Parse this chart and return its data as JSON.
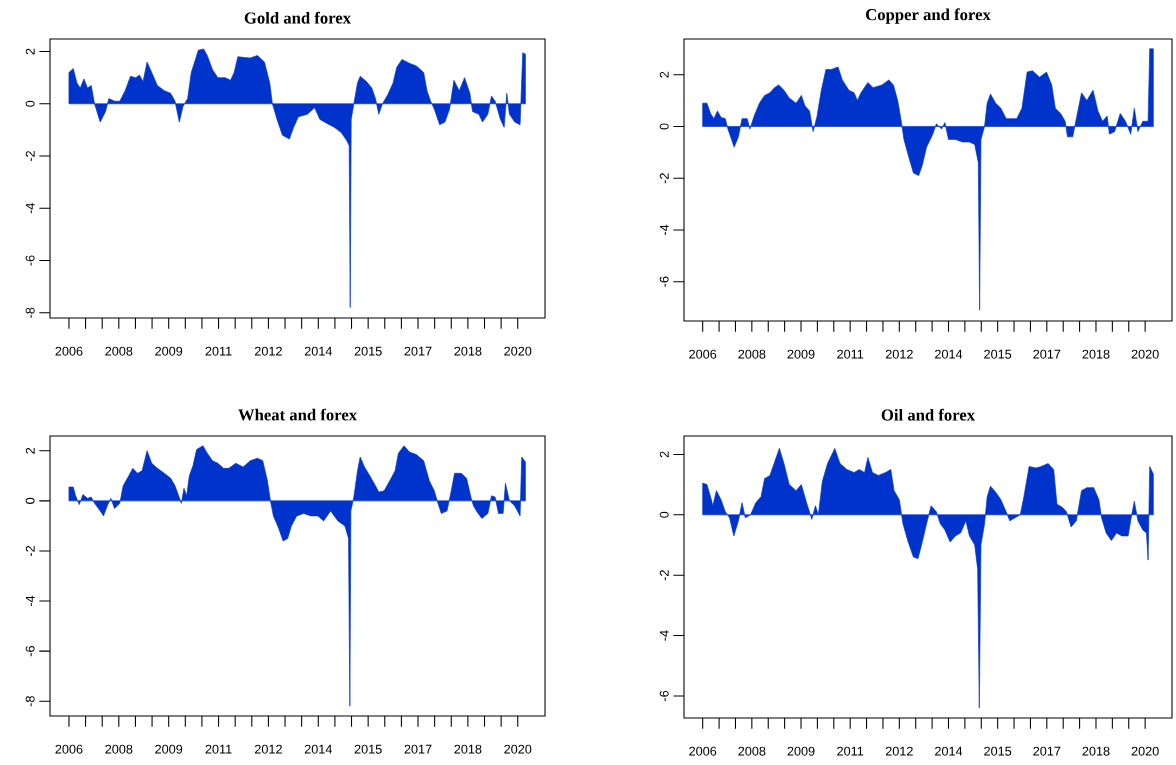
{
  "chart_data": [
    {
      "type": "area",
      "title": "Gold and forex",
      "color": "#0033cc",
      "x": [
        2006.0,
        2006.13,
        2006.24,
        2006.34,
        2006.45,
        2006.56,
        2006.67,
        2006.77,
        2006.94,
        2007.1,
        2007.2,
        2007.37,
        2007.53,
        2007.69,
        2007.85,
        2008.01,
        2008.12,
        2008.23,
        2008.35,
        2008.49,
        2008.66,
        2008.87,
        2009.06,
        2009.19,
        2009.32,
        2009.43,
        2009.57,
        2009.68,
        2009.78,
        2009.89,
        2010.05,
        2010.16,
        2010.32,
        2010.48,
        2010.7,
        2010.86,
        2010.97,
        2011.08,
        2011.45,
        2011.67,
        2011.88,
        2012.04,
        2012.12,
        2012.26,
        2012.42,
        2012.63,
        2012.76,
        2012.9,
        2013.17,
        2013.39,
        2013.55,
        2013.76,
        2013.98,
        2014.19,
        2014.35,
        2014.43,
        2014.46,
        2014.49,
        2014.57,
        2014.68,
        2014.76,
        2014.95,
        2015.11,
        2015.22,
        2015.32,
        2015.43,
        2015.59,
        2015.75,
        2015.86,
        2016.02,
        2016.24,
        2016.45,
        2016.67,
        2016.77,
        2016.88,
        2016.99,
        2017.15,
        2017.31,
        2017.45,
        2017.58,
        2017.74,
        2017.9,
        2018.06,
        2018.14,
        2018.33,
        2018.44,
        2018.6,
        2018.71,
        2018.82,
        2018.98,
        2019.09,
        2019.17,
        2019.25,
        2019.41,
        2019.57,
        2019.65,
        2019.73
      ],
      "values": [
        1.2,
        1.35,
        0.8,
        0.6,
        0.95,
        0.6,
        0.7,
        0.0,
        -0.7,
        -0.3,
        0.2,
        0.1,
        0.1,
        0.5,
        1.05,
        1.0,
        1.1,
        0.85,
        1.6,
        1.2,
        0.7,
        0.5,
        0.4,
        0.1,
        -0.7,
        -0.1,
        0.2,
        1.2,
        1.6,
        2.05,
        2.1,
        1.85,
        1.3,
        1.0,
        1.0,
        0.9,
        1.2,
        1.8,
        1.75,
        1.85,
        1.6,
        0.8,
        0.0,
        -0.6,
        -1.2,
        -1.35,
        -0.9,
        -0.5,
        -0.4,
        -0.15,
        -0.6,
        -0.75,
        -0.9,
        -1.1,
        -1.4,
        -1.6,
        -7.8,
        -0.6,
        0.0,
        0.8,
        1.05,
        0.85,
        0.6,
        0.2,
        -0.4,
        0.0,
        0.35,
        0.8,
        1.4,
        1.7,
        1.55,
        1.45,
        1.2,
        0.5,
        0.1,
        -0.2,
        -0.8,
        -0.7,
        -0.2,
        0.9,
        0.5,
        1.0,
        0.4,
        -0.3,
        -0.4,
        -0.7,
        -0.4,
        0.3,
        0.1,
        -0.6,
        -0.9,
        0.4,
        -0.4,
        -0.7,
        -0.8,
        1.95,
        1.9
      ],
      "xlim": [
        2005.43,
        2020.32
      ],
      "ylim": [
        -8.2,
        2.48
      ],
      "yticks": [
        -8,
        -6,
        -4,
        -2,
        0,
        2
      ],
      "xticks": [
        2006,
        {
          "value": 2006.5,
          "label": null
        },
        {
          "value": 2007,
          "label": null
        },
        {
          "value": 2007.5,
          "label": "2008"
        },
        {
          "value": 2008,
          "label": null
        },
        {
          "value": 2008.5,
          "label": null
        },
        2009,
        {
          "value": 2009.5,
          "label": null
        },
        {
          "value": 2010,
          "label": null
        },
        {
          "value": 2010.5,
          "label": "2011"
        },
        {
          "value": 2011,
          "label": null
        },
        {
          "value": 2011.5,
          "label": null
        },
        2012,
        {
          "value": 2012.5,
          "label": null
        },
        {
          "value": 2013,
          "label": null
        },
        {
          "value": 2013.5,
          "label": "2014"
        },
        {
          "value": 2014,
          "label": null
        },
        {
          "value": 2014.5,
          "label": null
        },
        2015,
        {
          "value": 2015.5,
          "label": null
        },
        {
          "value": 2016,
          "label": null
        },
        {
          "value": 2016.5,
          "label": "2017"
        },
        {
          "value": 2017,
          "label": null
        },
        {
          "value": 2017.5,
          "label": null
        },
        2018,
        {
          "value": 2018.5,
          "label": null
        },
        {
          "value": 2019,
          "label": null
        },
        {
          "value": 2019.5,
          "label": "2020"
        }
      ]
    },
    {
      "type": "area",
      "title": "Copper and forex",
      "color": "#0033cc",
      "x": [
        2006.0,
        2006.13,
        2006.24,
        2006.34,
        2006.45,
        2006.56,
        2006.69,
        2006.77,
        2006.88,
        2006.96,
        2007.09,
        2007.2,
        2007.36,
        2007.44,
        2007.57,
        2007.73,
        2007.89,
        2008.05,
        2008.19,
        2008.32,
        2008.48,
        2008.64,
        2008.85,
        2009.01,
        2009.12,
        2009.26,
        2009.37,
        2009.49,
        2009.62,
        2009.76,
        2009.92,
        2010.13,
        2010.26,
        2010.46,
        2010.62,
        2010.72,
        2010.83,
        2011.04,
        2011.2,
        2011.47,
        2011.68,
        2011.82,
        2011.95,
        2012.06,
        2012.14,
        2012.27,
        2012.43,
        2012.59,
        2012.7,
        2012.83,
        2013.02,
        2013.13,
        2013.29,
        2013.39,
        2013.5,
        2013.71,
        2013.93,
        2014.14,
        2014.3,
        2014.41,
        2014.45,
        2014.49,
        2014.6,
        2014.68,
        2014.78,
        2014.94,
        2015.1,
        2015.26,
        2015.37,
        2015.58,
        2015.74,
        2015.9,
        2016.06,
        2016.28,
        2016.49,
        2016.65,
        2016.76,
        2016.92,
        2017.06,
        2017.13,
        2017.29,
        2017.4,
        2017.56,
        2017.72,
        2017.91,
        2018.06,
        2018.2,
        2018.34,
        2018.41,
        2018.57,
        2018.74,
        2018.9,
        2019.06,
        2019.17,
        2019.28,
        2019.43,
        2019.59,
        2019.64,
        2019.75
      ],
      "values": [
        0.9,
        0.9,
        0.5,
        0.3,
        0.6,
        0.35,
        0.3,
        -0.1,
        -0.5,
        -0.8,
        -0.4,
        0.3,
        0.3,
        -0.1,
        0.4,
        0.9,
        1.2,
        1.3,
        1.5,
        1.6,
        1.4,
        1.1,
        0.9,
        1.2,
        0.8,
        0.6,
        -0.2,
        0.4,
        1.4,
        2.2,
        2.2,
        2.3,
        1.8,
        1.4,
        1.3,
        1.0,
        1.3,
        1.7,
        1.5,
        1.6,
        1.8,
        1.6,
        1.0,
        0.2,
        -0.5,
        -1.1,
        -1.8,
        -1.9,
        -1.5,
        -0.8,
        -0.3,
        0.1,
        -0.1,
        0.15,
        -0.5,
        -0.5,
        -0.6,
        -0.6,
        -0.7,
        -1.4,
        -7.1,
        -0.5,
        0.0,
        0.9,
        1.25,
        0.9,
        0.7,
        0.3,
        0.3,
        0.3,
        0.7,
        2.1,
        2.15,
        1.9,
        2.1,
        1.6,
        0.7,
        0.5,
        0.2,
        -0.4,
        -0.4,
        0.3,
        1.3,
        1.0,
        1.4,
        0.6,
        0.2,
        0.4,
        -0.3,
        -0.2,
        0.5,
        0.2,
        -0.3,
        0.7,
        -0.2,
        0.2,
        0.2,
        3.0,
        3.0
      ],
      "xlim": [
        2005.43,
        2020.32
      ],
      "ylim": [
        -7.52,
        3.38
      ],
      "yticks": [
        -6,
        -4,
        -2,
        0,
        2
      ],
      "xticks": [
        2006,
        {
          "value": 2006.5,
          "label": null
        },
        {
          "value": 2007,
          "label": null
        },
        {
          "value": 2007.5,
          "label": "2008"
        },
        {
          "value": 2008,
          "label": null
        },
        {
          "value": 2008.5,
          "label": null
        },
        2009,
        {
          "value": 2009.5,
          "label": null
        },
        {
          "value": 2010,
          "label": null
        },
        {
          "value": 2010.5,
          "label": "2011"
        },
        {
          "value": 2011,
          "label": null
        },
        {
          "value": 2011.5,
          "label": null
        },
        2012,
        {
          "value": 2012.5,
          "label": null
        },
        {
          "value": 2013,
          "label": null
        },
        {
          "value": 2013.5,
          "label": "2014"
        },
        {
          "value": 2014,
          "label": null
        },
        {
          "value": 2014.5,
          "label": null
        },
        2015,
        {
          "value": 2015.5,
          "label": null
        },
        {
          "value": 2016,
          "label": null
        },
        {
          "value": 2016.5,
          "label": "2017"
        },
        {
          "value": 2017,
          "label": null
        },
        {
          "value": 2017.5,
          "label": null
        },
        2018,
        {
          "value": 2018.5,
          "label": null
        },
        {
          "value": 2019,
          "label": null
        },
        {
          "value": 2019.5,
          "label": "2020"
        }
      ]
    },
    {
      "type": "area",
      "title": "Wheat and forex",
      "color": "#0033cc",
      "x": [
        2006.0,
        2006.13,
        2006.2,
        2006.31,
        2006.42,
        2006.56,
        2006.67,
        2006.77,
        2006.94,
        2007.04,
        2007.15,
        2007.26,
        2007.37,
        2007.53,
        2007.63,
        2007.8,
        2007.92,
        2008.06,
        2008.2,
        2008.35,
        2008.49,
        2008.66,
        2008.87,
        2009.06,
        2009.19,
        2009.3,
        2009.38,
        2009.46,
        2009.54,
        2009.62,
        2009.73,
        2009.84,
        2010.03,
        2010.16,
        2010.32,
        2010.48,
        2010.65,
        2010.81,
        2011.02,
        2011.24,
        2011.45,
        2011.67,
        2011.83,
        2011.97,
        2012.06,
        2012.15,
        2012.31,
        2012.44,
        2012.58,
        2012.69,
        2012.85,
        2013.06,
        2013.28,
        2013.49,
        2013.66,
        2013.87,
        2014.09,
        2014.3,
        2014.41,
        2014.45,
        2014.48,
        2014.57,
        2014.68,
        2014.76,
        2014.89,
        2015.05,
        2015.22,
        2015.32,
        2015.48,
        2015.65,
        2015.81,
        2015.91,
        2016.08,
        2016.24,
        2016.45,
        2016.67,
        2016.84,
        2016.99,
        2017.1,
        2017.2,
        2017.37,
        2017.47,
        2017.6,
        2017.8,
        2017.96,
        2018.1,
        2018.17,
        2018.28,
        2018.42,
        2018.6,
        2018.71,
        2018.82,
        2018.92,
        2019.06,
        2019.13,
        2019.25,
        2019.41,
        2019.57,
        2019.62,
        2019.73
      ],
      "values": [
        0.55,
        0.55,
        0.2,
        -0.15,
        0.25,
        0.1,
        0.15,
        -0.1,
        -0.4,
        -0.6,
        -0.2,
        0.1,
        -0.3,
        -0.1,
        0.6,
        1.0,
        1.3,
        1.1,
        1.2,
        2.0,
        1.5,
        1.3,
        1.1,
        0.9,
        0.6,
        0.2,
        -0.1,
        0.5,
        0.2,
        1.0,
        1.4,
        2.05,
        2.2,
        1.9,
        1.6,
        1.5,
        1.3,
        1.3,
        1.5,
        1.35,
        1.6,
        1.7,
        1.6,
        0.8,
        0.0,
        -0.6,
        -1.1,
        -1.6,
        -1.5,
        -1.0,
        -0.6,
        -0.5,
        -0.6,
        -0.6,
        -0.8,
        -0.4,
        -0.8,
        -1.0,
        -1.5,
        -8.2,
        -0.4,
        0.15,
        1.2,
        1.75,
        1.35,
        1.0,
        0.6,
        0.35,
        0.4,
        0.8,
        1.2,
        1.9,
        2.2,
        1.95,
        1.85,
        1.6,
        0.8,
        0.4,
        -0.1,
        -0.5,
        -0.4,
        0.2,
        1.1,
        1.1,
        0.9,
        0.1,
        -0.2,
        -0.45,
        -0.7,
        -0.5,
        0.2,
        0.15,
        -0.5,
        -0.5,
        0.7,
        0.0,
        -0.2,
        -0.6,
        1.75,
        1.55
      ],
      "xlim": [
        2005.43,
        2020.32
      ],
      "ylim": [
        -8.59,
        2.59
      ],
      "yticks": [
        -8,
        -6,
        -4,
        -2,
        0,
        2
      ],
      "xticks": [
        2006,
        {
          "value": 2006.5,
          "label": null
        },
        {
          "value": 2007,
          "label": null
        },
        {
          "value": 2007.5,
          "label": "2008"
        },
        {
          "value": 2008,
          "label": null
        },
        {
          "value": 2008.5,
          "label": null
        },
        2009,
        {
          "value": 2009.5,
          "label": null
        },
        {
          "value": 2010,
          "label": null
        },
        {
          "value": 2010.5,
          "label": "2011"
        },
        {
          "value": 2011,
          "label": null
        },
        {
          "value": 2011.5,
          "label": null
        },
        2012,
        {
          "value": 2012.5,
          "label": null
        },
        {
          "value": 2013,
          "label": null
        },
        {
          "value": 2013.5,
          "label": "2014"
        },
        {
          "value": 2014,
          "label": null
        },
        {
          "value": 2014.5,
          "label": null
        },
        2015,
        {
          "value": 2015.5,
          "label": null
        },
        {
          "value": 2016,
          "label": null
        },
        {
          "value": 2016.5,
          "label": "2017"
        },
        {
          "value": 2017,
          "label": null
        },
        {
          "value": 2017.5,
          "label": null
        },
        2018,
        {
          "value": 2018.5,
          "label": null
        },
        {
          "value": 2019,
          "label": null
        },
        {
          "value": 2019.5,
          "label": "2020"
        }
      ]
    },
    {
      "type": "area",
      "title": "Oil and forex",
      "color": "#0033cc",
      "x": [
        2006.0,
        2006.13,
        2006.24,
        2006.31,
        2006.42,
        2006.56,
        2006.69,
        2006.82,
        2006.95,
        2007.09,
        2007.2,
        2007.3,
        2007.46,
        2007.62,
        2007.78,
        2007.89,
        2008.05,
        2008.21,
        2008.34,
        2008.48,
        2008.64,
        2008.85,
        2009.01,
        2009.17,
        2009.33,
        2009.44,
        2009.53,
        2009.65,
        2009.81,
        2010.03,
        2010.19,
        2010.4,
        2010.62,
        2010.78,
        2010.94,
        2011.04,
        2011.18,
        2011.36,
        2011.58,
        2011.74,
        2011.84,
        2012.0,
        2012.11,
        2012.27,
        2012.43,
        2012.57,
        2012.7,
        2012.83,
        2012.97,
        2013.13,
        2013.25,
        2013.39,
        2013.55,
        2013.71,
        2013.87,
        2014.03,
        2014.14,
        2014.3,
        2014.39,
        2014.44,
        2014.49,
        2014.6,
        2014.68,
        2014.78,
        2014.94,
        2015.1,
        2015.26,
        2015.37,
        2015.53,
        2015.69,
        2015.8,
        2015.96,
        2016.17,
        2016.33,
        2016.54,
        2016.71,
        2016.81,
        2016.97,
        2017.1,
        2017.24,
        2017.4,
        2017.56,
        2017.72,
        2017.93,
        2018.09,
        2018.17,
        2018.31,
        2018.47,
        2018.63,
        2018.79,
        2018.98,
        2019.09,
        2019.17,
        2019.28,
        2019.43,
        2019.54,
        2019.59,
        2019.64,
        2019.75
      ],
      "values": [
        1.05,
        1.0,
        0.6,
        0.3,
        0.8,
        0.5,
        0.1,
        -0.1,
        -0.7,
        -0.2,
        0.4,
        -0.1,
        0.0,
        0.4,
        0.6,
        1.2,
        1.3,
        1.8,
        2.2,
        1.7,
        1.0,
        0.8,
        1.0,
        0.4,
        -0.15,
        0.3,
        0.0,
        1.1,
        1.7,
        2.2,
        1.7,
        1.5,
        1.4,
        1.5,
        1.4,
        1.9,
        1.4,
        1.3,
        1.4,
        1.5,
        0.8,
        0.5,
        -0.3,
        -0.9,
        -1.4,
        -1.45,
        -0.9,
        -0.3,
        0.3,
        0.1,
        -0.3,
        -0.5,
        -0.9,
        -0.7,
        -0.6,
        -0.2,
        -0.7,
        -1.0,
        -1.8,
        -6.4,
        -1.0,
        -0.3,
        0.6,
        0.95,
        0.75,
        0.5,
        0.1,
        -0.2,
        -0.1,
        0.0,
        0.6,
        1.6,
        1.55,
        1.6,
        1.7,
        1.5,
        0.35,
        0.25,
        0.1,
        -0.4,
        -0.2,
        0.8,
        0.9,
        0.9,
        0.5,
        -0.1,
        -0.6,
        -0.85,
        -0.6,
        -0.7,
        -0.7,
        0.0,
        0.45,
        -0.2,
        -0.5,
        -0.6,
        -1.5,
        1.6,
        1.35
      ],
      "xlim": [
        2005.43,
        2020.32
      ],
      "ylim": [
        -6.73,
        2.61
      ],
      "yticks": [
        -6,
        -4,
        -2,
        0,
        2
      ],
      "xticks": [
        2006,
        {
          "value": 2006.5,
          "label": null
        },
        {
          "value": 2007,
          "label": null
        },
        {
          "value": 2007.5,
          "label": "2008"
        },
        {
          "value": 2008,
          "label": null
        },
        {
          "value": 2008.5,
          "label": null
        },
        2009,
        {
          "value": 2009.5,
          "label": null
        },
        {
          "value": 2010,
          "label": null
        },
        {
          "value": 2010.5,
          "label": "2011"
        },
        {
          "value": 2011,
          "label": null
        },
        {
          "value": 2011.5,
          "label": null
        },
        2012,
        {
          "value": 2012.5,
          "label": null
        },
        {
          "value": 2013,
          "label": null
        },
        {
          "value": 2013.5,
          "label": "2014"
        },
        {
          "value": 2014,
          "label": null
        },
        {
          "value": 2014.5,
          "label": null
        },
        2015,
        {
          "value": 2015.5,
          "label": null
        },
        {
          "value": 2016,
          "label": null
        },
        {
          "value": 2016.5,
          "label": "2017"
        },
        {
          "value": 2017,
          "label": null
        },
        {
          "value": 2017.5,
          "label": null
        },
        2018,
        {
          "value": 2018.5,
          "label": null
        },
        {
          "value": 2019,
          "label": null
        },
        {
          "value": 2019.5,
          "label": "2020"
        }
      ]
    }
  ]
}
